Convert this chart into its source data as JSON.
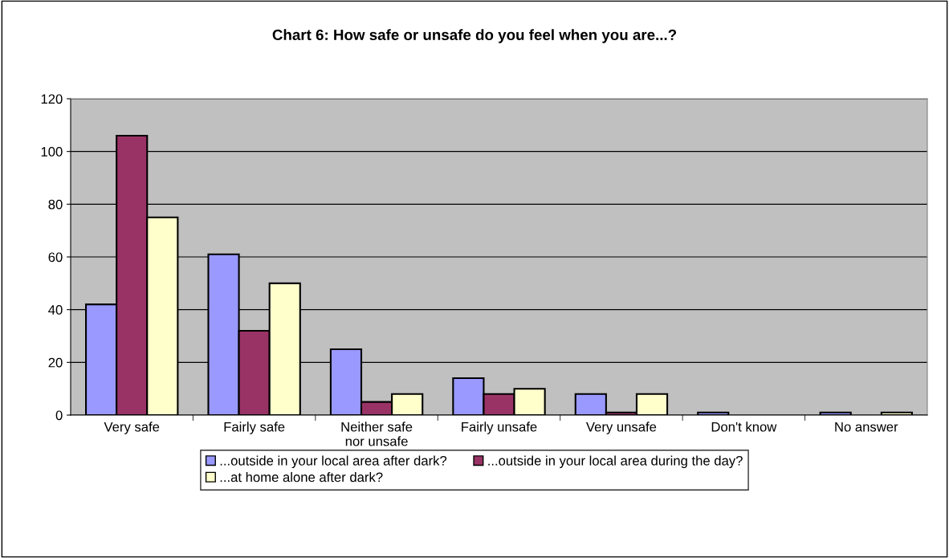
{
  "chart_data": {
    "type": "bar",
    "title": "Chart 6: How safe or unsafe do you feel when you are...?",
    "categories": [
      "Very safe",
      "Fairly safe",
      "Neither safe\nnor unsafe",
      "Fairly unsafe",
      "Very unsafe",
      "Don't know",
      "No answer"
    ],
    "series": [
      {
        "name": "...outside in your local area after dark?",
        "color": "#9999ff",
        "values": [
          42,
          61,
          25,
          14,
          8,
          1,
          1
        ]
      },
      {
        "name": "...outside in your local area during the day?",
        "color": "#993366",
        "values": [
          106,
          32,
          5,
          8,
          1,
          null,
          null
        ]
      },
      {
        "name": "...at home alone after dark?",
        "color": "#ffffcc",
        "values": [
          75,
          50,
          8,
          10,
          8,
          null,
          1
        ]
      }
    ],
    "ylim": [
      0,
      120
    ],
    "yticks": [
      0,
      20,
      40,
      60,
      80,
      100,
      120
    ],
    "grid": "y",
    "legend": "bottom"
  }
}
